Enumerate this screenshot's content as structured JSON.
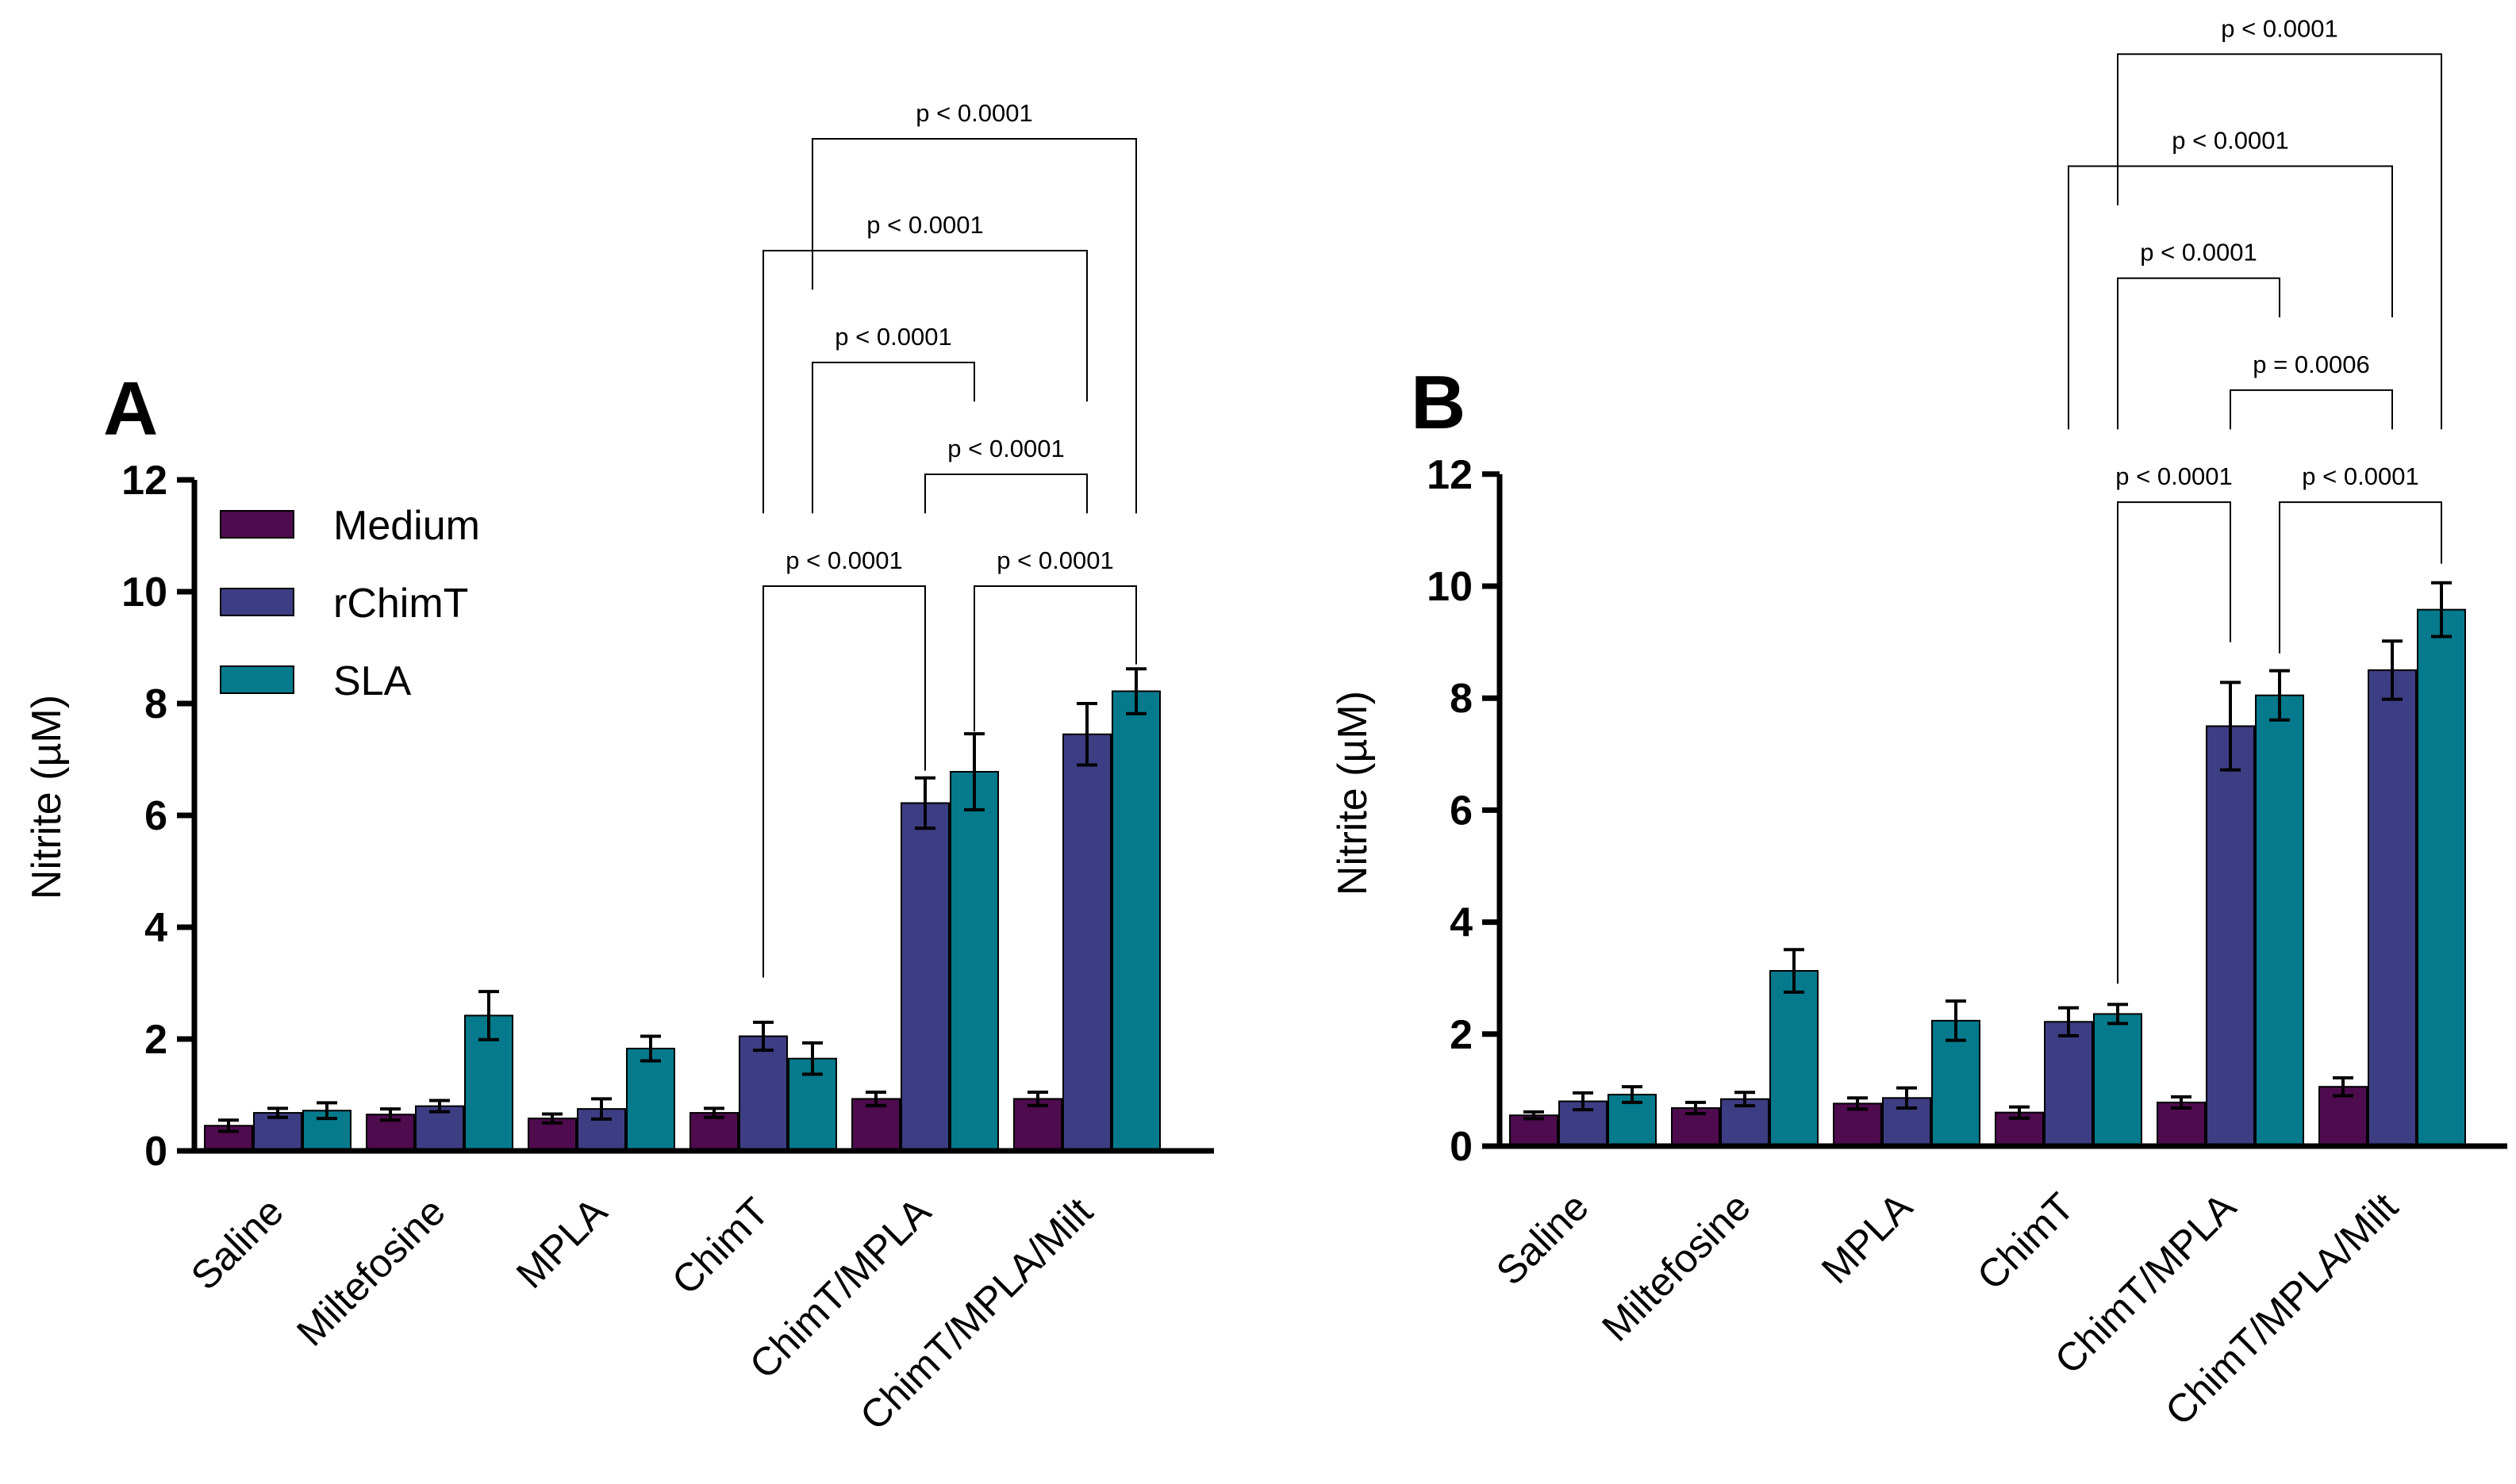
{
  "chart_data": [
    {
      "type": "bar",
      "panel": "A",
      "title": "",
      "ylabel": "Nitrite (µM)",
      "xlabel": "",
      "ylim": [
        0,
        12
      ],
      "yticks": [
        "0",
        "2",
        "4",
        "6",
        "8",
        "10",
        "12"
      ],
      "categories": [
        "Saline",
        "Miltefosine",
        "MPLA",
        "ChimT",
        "ChimT/MPLA",
        "ChimT/MPLA/Milt"
      ],
      "legend": {
        "placement": "top-left",
        "entries": [
          "Medium",
          "rChimT",
          "SLA"
        ]
      },
      "series": [
        {
          "name": "Medium",
          "color": "#4e0b4e",
          "values": [
            0.45,
            0.65,
            0.58,
            0.68,
            0.93,
            0.93
          ],
          "errors": [
            0.1,
            0.1,
            0.08,
            0.08,
            0.12,
            0.12
          ]
        },
        {
          "name": "rChimT",
          "color": "#3d3d84",
          "values": [
            0.68,
            0.8,
            0.75,
            2.05,
            6.22,
            7.45
          ],
          "errors": [
            0.08,
            0.1,
            0.18,
            0.25,
            0.45,
            0.55
          ]
        },
        {
          "name": "SLA",
          "color": "#047a8c",
          "values": [
            0.72,
            2.42,
            1.83,
            1.65,
            6.78,
            8.22
          ],
          "errors": [
            0.14,
            0.43,
            0.22,
            0.28,
            0.68,
            0.4
          ]
        }
      ],
      "comparisons": [
        {
          "from": [
            3,
            1
          ],
          "to": [
            4,
            1
          ],
          "label": "p < 0.0001",
          "top": 10.1,
          "from_end": 3.1,
          "to_end": 6.8
        },
        {
          "from": [
            4,
            2
          ],
          "to": [
            5,
            2
          ],
          "label": "p < 0.0001",
          "top": 10.1,
          "from_end": 7.5,
          "to_end": 8.7
        },
        {
          "from": [
            4,
            1
          ],
          "to": [
            5,
            1
          ],
          "label": "p < 0.0001",
          "top": 12.1,
          "from_end": 11.4,
          "to_end": 11.4
        },
        {
          "from": [
            3,
            2
          ],
          "to": [
            4,
            2
          ],
          "label": "p < 0.0001",
          "top": 14.1,
          "from_end": 11.4,
          "to_end": 13.4
        },
        {
          "from": [
            3,
            1
          ],
          "to": [
            5,
            1
          ],
          "label": "p < 0.0001",
          "top": 16.1,
          "from_end": 11.4,
          "to_end": 13.4
        },
        {
          "from": [
            3,
            2
          ],
          "to": [
            5,
            2
          ],
          "label": "p < 0.0001",
          "top": 18.1,
          "from_end": 15.4,
          "to_end": 11.4
        }
      ]
    },
    {
      "type": "bar",
      "panel": "B",
      "title": "",
      "ylabel": "Nitrite (µM)",
      "xlabel": "",
      "ylim": [
        0,
        12
      ],
      "yticks": [
        "0",
        "2",
        "4",
        "6",
        "8",
        "10",
        "12"
      ],
      "categories": [
        "Saline",
        "Miltefosine",
        "MPLA",
        "ChimT",
        "ChimT/MPLA",
        "ChimT/MPLA/Milt"
      ],
      "series": [
        {
          "name": "Medium",
          "color": "#4e0b4e",
          "values": [
            0.55,
            0.68,
            0.76,
            0.6,
            0.78,
            1.06
          ],
          "errors": [
            0.06,
            0.1,
            0.1,
            0.1,
            0.1,
            0.16
          ]
        },
        {
          "name": "rChimT",
          "color": "#3d3d84",
          "values": [
            0.8,
            0.84,
            0.86,
            2.22,
            7.5,
            8.5
          ],
          "errors": [
            0.15,
            0.12,
            0.18,
            0.25,
            0.78,
            0.52
          ]
        },
        {
          "name": "SLA",
          "color": "#047a8c",
          "values": [
            0.92,
            3.13,
            2.24,
            2.36,
            8.05,
            9.58
          ],
          "errors": [
            0.14,
            0.38,
            0.35,
            0.17,
            0.44,
            0.48
          ]
        }
      ],
      "comparisons": [
        {
          "from": [
            3,
            2
          ],
          "to": [
            4,
            1
          ],
          "label": "p < 0.0001",
          "top": 11.5,
          "from_end": 2.9,
          "to_end": 9.0
        },
        {
          "from": [
            4,
            2
          ],
          "to": [
            5,
            2
          ],
          "label": "p < 0.0001",
          "top": 11.5,
          "from_end": 8.8,
          "to_end": 10.4
        },
        {
          "from": [
            4,
            1
          ],
          "to": [
            5,
            1
          ],
          "label": "p = 0.0006",
          "top": 13.5,
          "from_end": 12.8,
          "to_end": 12.8
        },
        {
          "from": [
            3,
            2
          ],
          "to": [
            4,
            2
          ],
          "label": "p < 0.0001",
          "top": 15.5,
          "from_end": 12.8,
          "to_end": 14.8
        },
        {
          "from": [
            3,
            1
          ],
          "to": [
            5,
            1
          ],
          "label": "p < 0.0001",
          "top": 17.5,
          "from_end": 12.8,
          "to_end": 14.8
        },
        {
          "from": [
            3,
            2
          ],
          "to": [
            5,
            2
          ],
          "label": "p < 0.0001",
          "top": 19.5,
          "from_end": 16.8,
          "to_end": 12.8
        }
      ]
    }
  ]
}
